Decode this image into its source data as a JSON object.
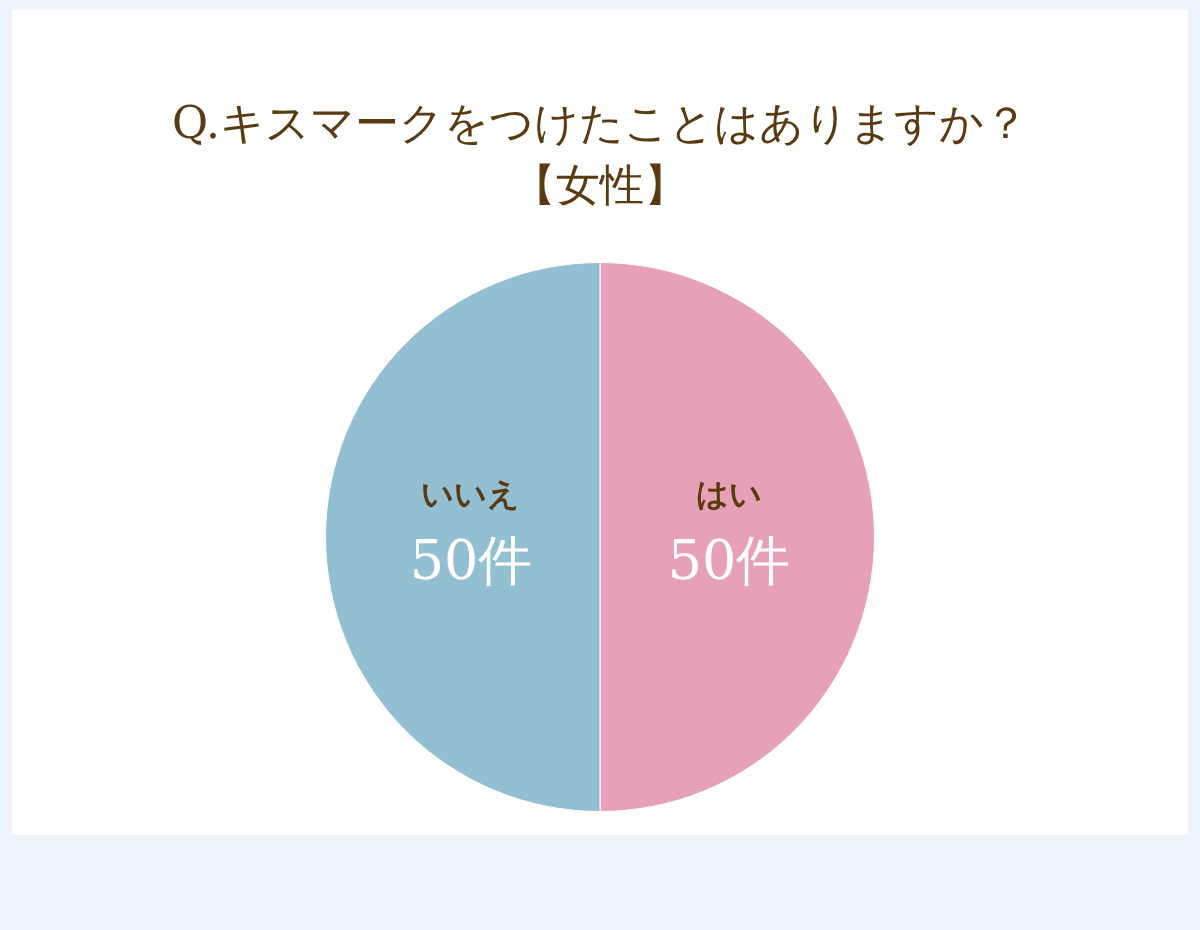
{
  "chart_data": {
    "type": "pie",
    "title": "Q.キスマークをつけたことはありますか？",
    "subtitle": "【女性】",
    "categories": [
      "はい",
      "いいえ"
    ],
    "values": [
      50,
      50
    ],
    "colors": [
      "#e6a0b8",
      "#93bfd3"
    ],
    "value_labels": [
      "50件",
      "50件"
    ],
    "legend": false
  }
}
